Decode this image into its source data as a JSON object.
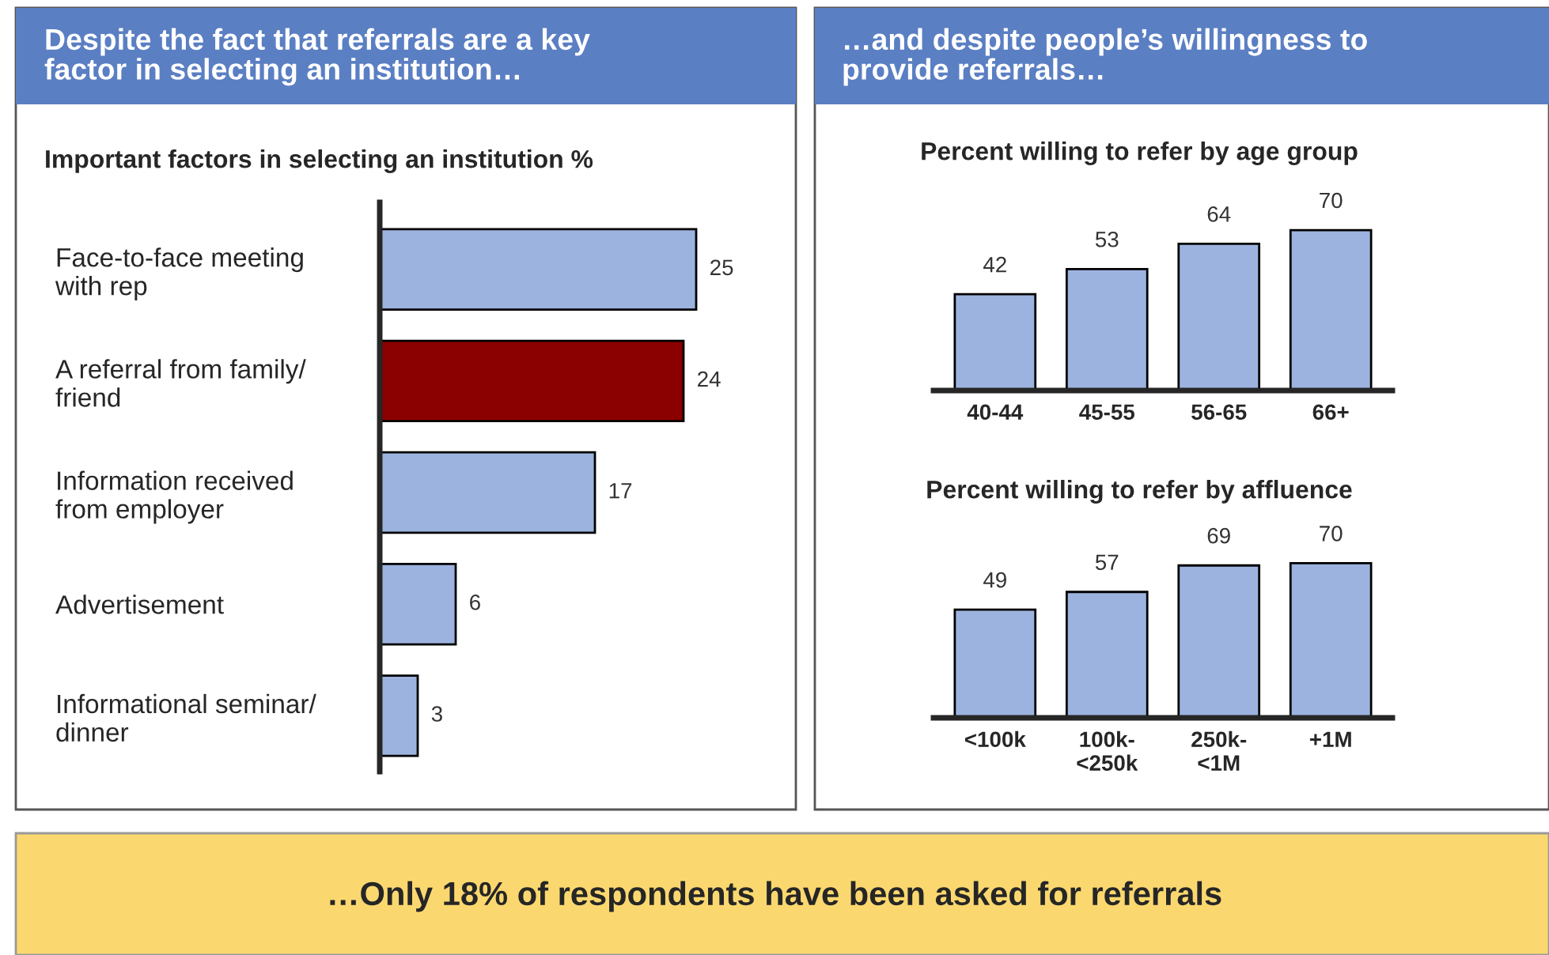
{
  "chart_data": [
    {
      "type": "bar",
      "orientation": "horizontal",
      "title": "Despite the fact that referrals are a key\nfactor in selecting an institution…",
      "subtitle": "Important factors in selecting an institution %",
      "categories": [
        "Face-to-face meeting\nwith rep",
        "A referral from family/\nfriend",
        "Information received\nfrom employer",
        "Advertisement",
        "Informational seminar/\ndinner"
      ],
      "values": [
        25,
        24,
        17,
        6,
        3
      ],
      "colors": [
        "#9db3df",
        "#8b0000",
        "#9db3df",
        "#9db3df",
        "#9db3df"
      ],
      "data_labels": true,
      "grid": false,
      "tick_labels": "y"
    },
    {
      "type": "bar",
      "title": "…and despite people’s willingness to\nprovide referrals…",
      "subtitle": "Percent willing to refer by age group",
      "categories": [
        "40-44",
        "45-55",
        "56-65",
        "66+"
      ],
      "values": [
        42,
        53,
        64,
        70
      ],
      "color": "#9db3df",
      "data_labels": true,
      "grid": false,
      "tick_labels": "x"
    },
    {
      "type": "bar",
      "title": "Percent willing to refer by affluence",
      "categories": [
        "<100k",
        "100k-\n<250k",
        "250k-\n<1M",
        "+1M"
      ],
      "values": [
        49,
        57,
        69,
        70
      ],
      "color": "#9db3df",
      "data_labels": true,
      "grid": false,
      "tick_labels": "x",
      "annotations": [
        "…Only 18% of respondents have been asked for referrals"
      ]
    }
  ]
}
